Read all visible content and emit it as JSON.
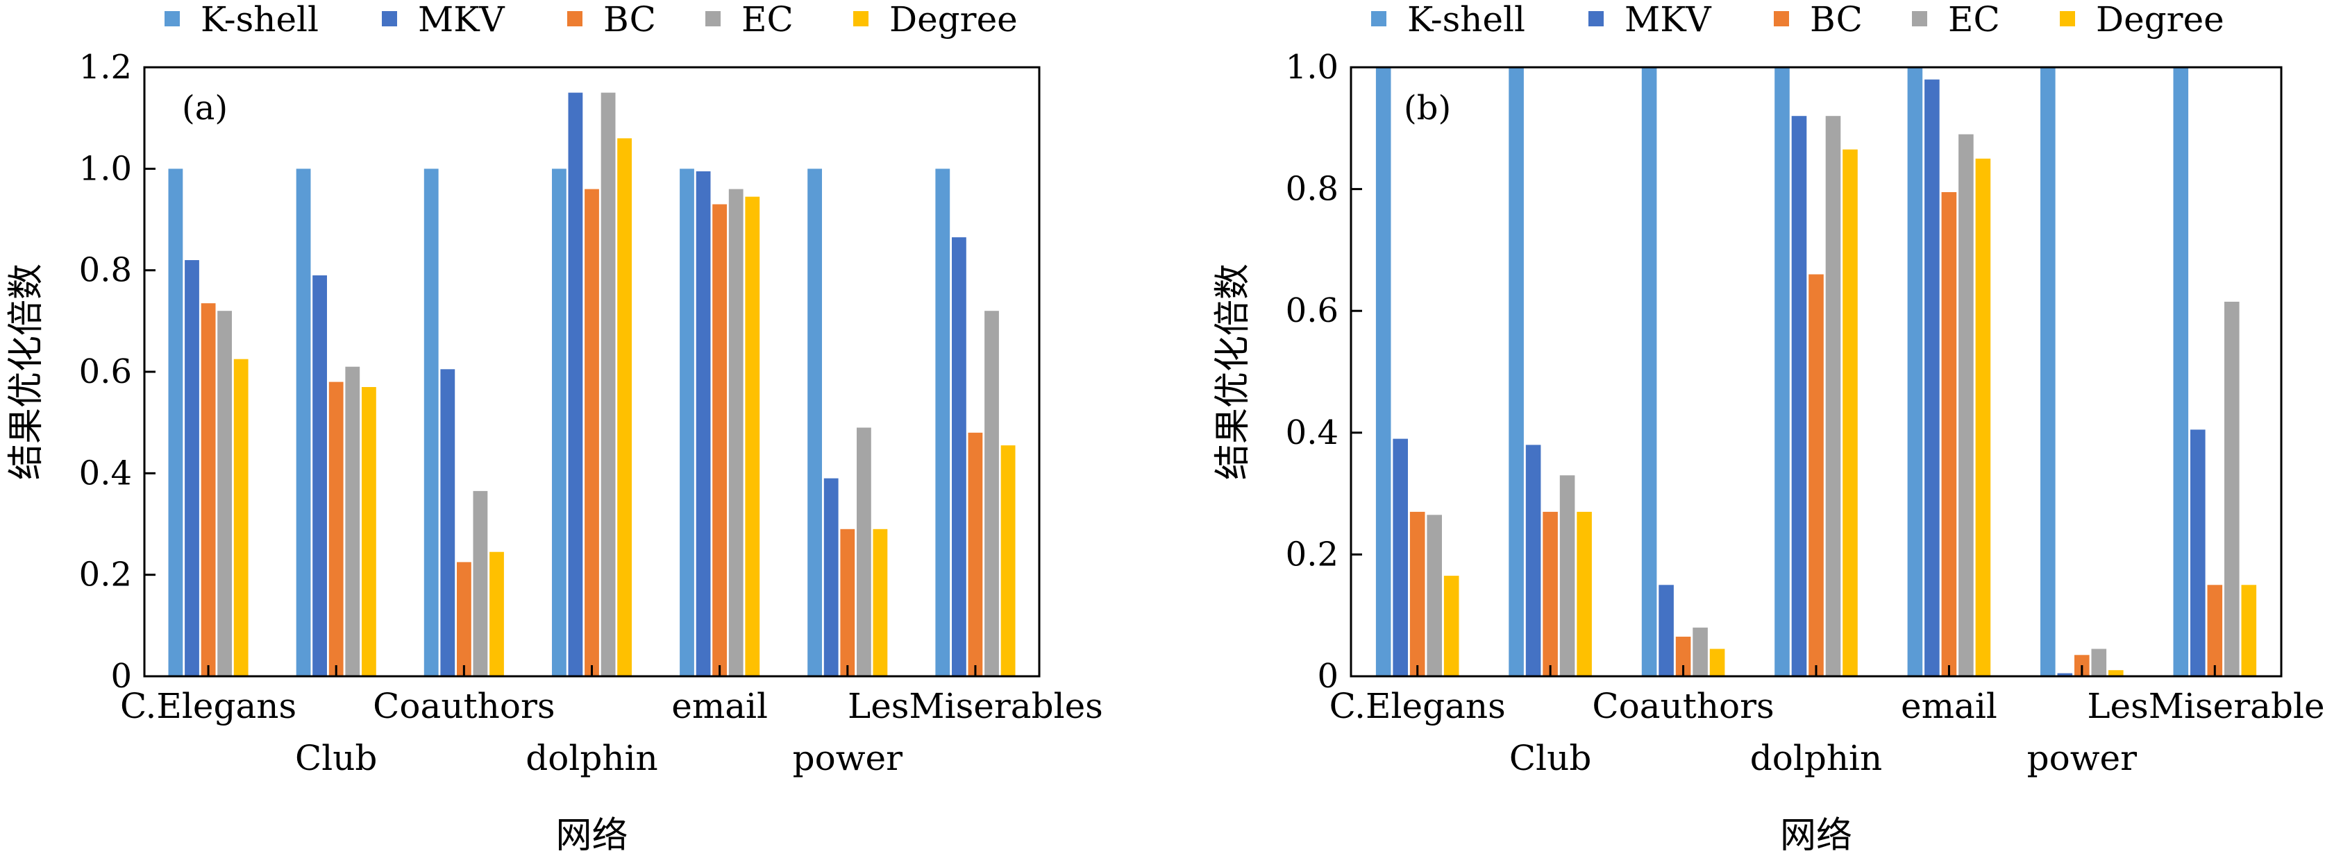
{
  "legend": [
    {
      "name": "K-shell",
      "color": "#5b9bd5"
    },
    {
      "name": "MKV",
      "color": "#4472c4"
    },
    {
      "name": "BC",
      "color": "#ed7d31"
    },
    {
      "name": "EC",
      "color": "#a5a5a5"
    },
    {
      "name": "Degree",
      "color": "#ffc000"
    }
  ],
  "chart_data": [
    {
      "type": "bar",
      "panel_label": "(a)",
      "xlabel": "网络",
      "ylabel": "结果优化倍数",
      "ylim": [
        0,
        1.2
      ],
      "yticks": [
        "0",
        "0.2",
        "0.4",
        "0.6",
        "0.8",
        "1.0",
        "1.2"
      ],
      "grid": false,
      "legend_position": "top",
      "categories": [
        "C.Elegans",
        "Club",
        "Coauthors",
        "dolphin",
        "email",
        "power",
        "LesMiserables"
      ],
      "series": [
        {
          "name": "K-shell",
          "values": [
            1.0,
            1.0,
            1.0,
            1.0,
            1.0,
            1.0,
            1.0
          ]
        },
        {
          "name": "MKV",
          "values": [
            0.82,
            0.79,
            0.605,
            1.15,
            0.995,
            0.39,
            0.865
          ]
        },
        {
          "name": "BC",
          "values": [
            0.735,
            0.58,
            0.225,
            0.96,
            0.93,
            0.29,
            0.48
          ]
        },
        {
          "name": "EC",
          "values": [
            0.72,
            0.61,
            0.365,
            1.15,
            0.96,
            0.49,
            0.72
          ]
        },
        {
          "name": "Degree",
          "values": [
            0.625,
            0.57,
            0.245,
            1.06,
            0.945,
            0.29,
            0.455
          ]
        }
      ]
    },
    {
      "type": "bar",
      "panel_label": "(b)",
      "xlabel": "网络",
      "ylabel": "结果优化倍数",
      "ylim": [
        0,
        1.0
      ],
      "yticks": [
        "0",
        "0.2",
        "0.4",
        "0.6",
        "0.8",
        "1.0"
      ],
      "grid": false,
      "legend_position": "top",
      "categories": [
        "C.Elegans",
        "Club",
        "Coauthors",
        "dolphin",
        "email",
        "power",
        "LesMiserables"
      ],
      "series": [
        {
          "name": "K-shell",
          "values": [
            1.0,
            1.0,
            1.0,
            1.0,
            1.0,
            1.0,
            1.0
          ]
        },
        {
          "name": "MKV",
          "values": [
            0.39,
            0.38,
            0.15,
            0.92,
            0.98,
            0.005,
            0.405
          ]
        },
        {
          "name": "BC",
          "values": [
            0.27,
            0.27,
            0.065,
            0.66,
            0.795,
            0.035,
            0.15
          ]
        },
        {
          "name": "EC",
          "values": [
            0.265,
            0.33,
            0.08,
            0.92,
            0.89,
            0.045,
            0.615
          ]
        },
        {
          "name": "Degree",
          "values": [
            0.165,
            0.27,
            0.045,
            0.865,
            0.85,
            0.01,
            0.15
          ]
        }
      ]
    }
  ]
}
